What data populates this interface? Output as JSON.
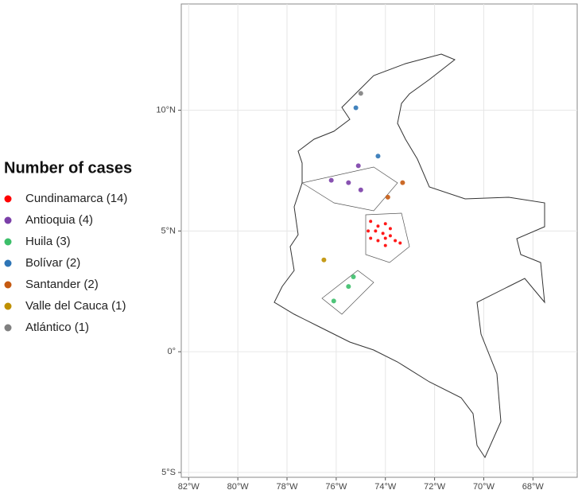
{
  "chart_data": {
    "type": "map",
    "legend_title": "Number of cases",
    "legend": "left",
    "grid": true,
    "xlim": [
      -82.3,
      -66.2
    ],
    "ylim": [
      -5.2,
      14.4
    ],
    "xticks": [
      {
        "value": -82,
        "label": "82°W"
      },
      {
        "value": -80,
        "label": "80°W"
      },
      {
        "value": -78,
        "label": "78°W"
      },
      {
        "value": -76,
        "label": "76°W"
      },
      {
        "value": -74,
        "label": "74°W"
      },
      {
        "value": -72,
        "label": "72°W"
      },
      {
        "value": -70,
        "label": "70°W"
      },
      {
        "value": -68,
        "label": "68°W"
      }
    ],
    "yticks": [
      {
        "value": -5,
        "label": "5°S"
      },
      {
        "value": 0,
        "label": "0°"
      },
      {
        "value": 5,
        "label": "5°N"
      },
      {
        "value": 10,
        "label": "10°N"
      }
    ],
    "series": [
      {
        "name": "Cundinamarca (14)",
        "color": "#ff0000",
        "x": [
          -74.6,
          -74.3,
          -74.0,
          -73.8,
          -74.7,
          -74.4,
          -74.1,
          -73.8,
          -74.6,
          -74.3,
          -74.0,
          -73.6,
          -73.4,
          -74.0
        ],
        "values": [
          5.4,
          5.2,
          5.3,
          5.1,
          5.0,
          5.0,
          4.9,
          4.8,
          4.7,
          4.6,
          4.7,
          4.6,
          4.5,
          4.4
        ]
      },
      {
        "name": "Antioquia (4)",
        "color": "#7b3fa8",
        "x": [
          -76.2,
          -75.1,
          -75.5,
          -75.0
        ],
        "values": [
          7.1,
          7.7,
          7.0,
          6.7
        ]
      },
      {
        "name": "Huila (3)",
        "color": "#3cbf6a",
        "x": [
          -75.3,
          -75.5,
          -76.1
        ],
        "values": [
          3.1,
          2.7,
          2.1
        ]
      },
      {
        "name": "Bolívar (2)",
        "color": "#2e75b6",
        "x": [
          -75.2,
          -74.3
        ],
        "values": [
          10.1,
          8.1
        ]
      },
      {
        "name": "Santander (2)",
        "color": "#c55a11",
        "x": [
          -73.9,
          -73.3
        ],
        "values": [
          6.4,
          7.0
        ]
      },
      {
        "name": "Valle del Cauca (1)",
        "color": "#bf9000",
        "x": [
          -76.5
        ],
        "values": [
          3.8
        ]
      },
      {
        "name": "Atlántico (1)",
        "color": "#808080",
        "x": [
          -75.0
        ],
        "values": [
          10.7
        ]
      }
    ]
  }
}
